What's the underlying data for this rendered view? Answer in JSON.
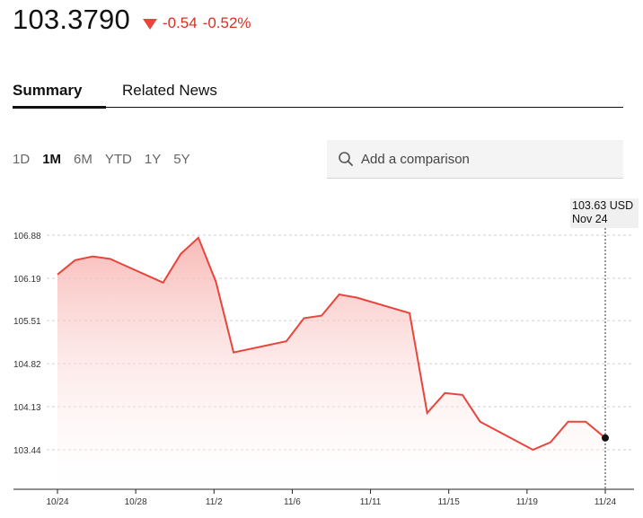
{
  "quote": {
    "price": "103.3790",
    "change_abs": "-0.54",
    "change_pct": "-0.52%",
    "down_color": "#e8453c"
  },
  "tabs": [
    {
      "label": "Summary",
      "active": true
    },
    {
      "label": "Related News",
      "active": false
    }
  ],
  "ranges": [
    {
      "label": "1D",
      "active": false
    },
    {
      "label": "1M",
      "active": true
    },
    {
      "label": "6M",
      "active": false
    },
    {
      "label": "YTD",
      "active": false
    },
    {
      "label": "1Y",
      "active": false
    },
    {
      "label": "5Y",
      "active": false
    }
  ],
  "comparison": {
    "placeholder": "Add a comparison",
    "icon": "search-icon"
  },
  "tooltip": {
    "value": "103.63 USD",
    "date": "Nov 24"
  },
  "chart_data": {
    "type": "area",
    "line_color": "#e8453c",
    "y_ticks": [
      106.88,
      106.19,
      105.51,
      104.82,
      104.13,
      103.44
    ],
    "y_tick_labels": [
      "106.88",
      "106.19",
      "105.51",
      "104.82",
      "104.13",
      "103.44"
    ],
    "ylim": [
      102.7,
      107.9
    ],
    "x_tick_labels": [
      "10/24",
      "10/28",
      "11/2",
      "11/6",
      "11/11",
      "11/15",
      "11/19",
      "11/24"
    ],
    "x_tick_day_index": [
      0,
      4,
      8,
      12,
      16,
      20,
      24,
      28
    ],
    "grid": true,
    "hover_index": 28,
    "points": [
      {
        "d": 0,
        "v": 106.25
      },
      {
        "d": 0.9,
        "v": 106.48
      },
      {
        "d": 1.8,
        "v": 106.54
      },
      {
        "d": 2.7,
        "v": 106.5
      },
      {
        "d": 5.4,
        "v": 106.12
      },
      {
        "d": 6.3,
        "v": 106.58
      },
      {
        "d": 7.2,
        "v": 106.84
      },
      {
        "d": 8.1,
        "v": 106.13
      },
      {
        "d": 9.0,
        "v": 105.0
      },
      {
        "d": 11.7,
        "v": 105.18
      },
      {
        "d": 12.6,
        "v": 105.55
      },
      {
        "d": 13.5,
        "v": 105.59
      },
      {
        "d": 14.4,
        "v": 105.93
      },
      {
        "d": 15.3,
        "v": 105.88
      },
      {
        "d": 18.0,
        "v": 105.63
      },
      {
        "d": 18.9,
        "v": 104.03
      },
      {
        "d": 19.8,
        "v": 104.35
      },
      {
        "d": 20.7,
        "v": 104.32
      },
      {
        "d": 21.6,
        "v": 103.89
      },
      {
        "d": 24.3,
        "v": 103.44
      },
      {
        "d": 25.2,
        "v": 103.56
      },
      {
        "d": 26.1,
        "v": 103.89
      },
      {
        "d": 27.0,
        "v": 103.89
      },
      {
        "d": 28.0,
        "v": 103.63
      }
    ]
  }
}
